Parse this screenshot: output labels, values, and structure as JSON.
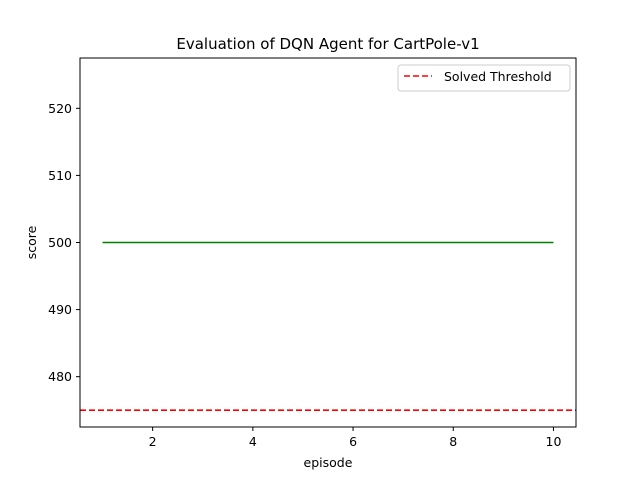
{
  "chart_data": {
    "type": "line",
    "title": "Evaluation of DQN Agent for CartPole-v1",
    "xlabel": "episode",
    "ylabel": "score",
    "xlim": [
      0.55,
      10.45
    ],
    "ylim": [
      472.5,
      527.5
    ],
    "xticks": [
      2,
      4,
      6,
      8,
      10
    ],
    "yticks": [
      480,
      490,
      500,
      510,
      520
    ],
    "grid": false,
    "legend_position": "top-right",
    "series": [
      {
        "name": "",
        "color": "#008000",
        "style": "solid",
        "x": [
          1,
          2,
          3,
          4,
          5,
          6,
          7,
          8,
          9,
          10
        ],
        "y": [
          500,
          500,
          500,
          500,
          500,
          500,
          500,
          500,
          500,
          500
        ]
      }
    ],
    "reference_lines": [
      {
        "name": "Solved Threshold",
        "orientation": "horizontal",
        "y": 475,
        "color": "#ff0000",
        "style": "dashed"
      }
    ]
  }
}
